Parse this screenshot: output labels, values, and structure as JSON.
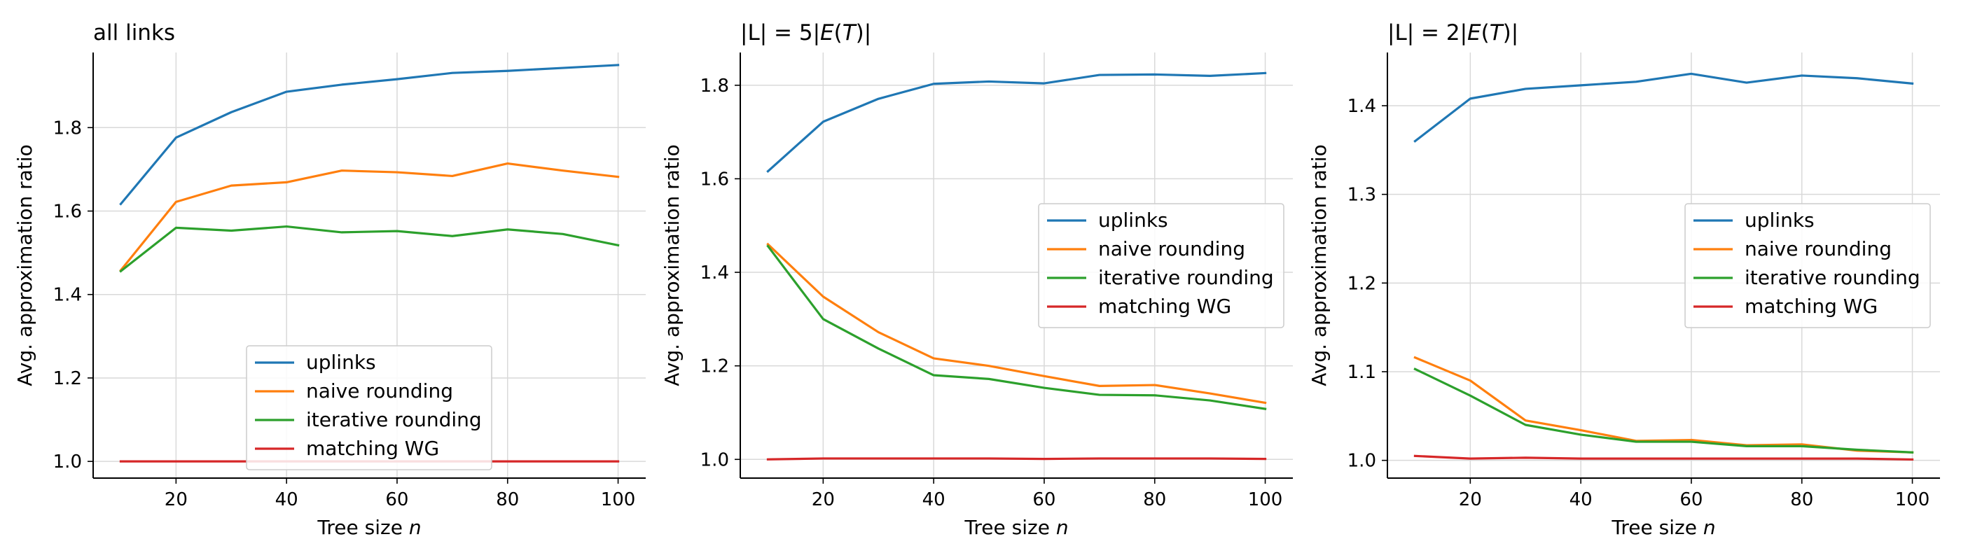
{
  "chart_data": [
    {
      "type": "line",
      "title": "all links",
      "xlabel": "Tree size",
      "xlabel_var": "n",
      "ylabel": "Avg. approximation ratio",
      "xlim": [
        5,
        105
      ],
      "ylim": [
        0.96,
        1.98
      ],
      "xticks": [
        20,
        40,
        60,
        80,
        100
      ],
      "yticks": [
        1.0,
        1.2,
        1.4,
        1.6,
        1.8
      ],
      "grid": true,
      "legend_position": "lower-center",
      "x": [
        10,
        20,
        30,
        40,
        50,
        60,
        70,
        80,
        90,
        100
      ],
      "series": [
        {
          "name": "uplinks",
          "color": "#1f77b4",
          "values": [
            1.617,
            1.776,
            1.837,
            1.886,
            1.903,
            1.916,
            1.931,
            1.936,
            1.943,
            1.95
          ]
        },
        {
          "name": "naive rounding",
          "color": "#ff7f0e",
          "values": [
            1.458,
            1.622,
            1.661,
            1.669,
            1.697,
            1.693,
            1.684,
            1.714,
            1.697,
            1.682
          ]
        },
        {
          "name": "iterative rounding",
          "color": "#2ca02c",
          "values": [
            1.456,
            1.56,
            1.553,
            1.563,
            1.549,
            1.552,
            1.54,
            1.556,
            1.545,
            1.518
          ]
        },
        {
          "name": "matching WG",
          "color": "#d62728",
          "values": [
            1.0,
            1.0,
            1.0,
            1.0,
            1.0,
            1.0,
            1.0,
            1.0,
            1.0,
            1.0
          ]
        }
      ]
    },
    {
      "type": "line",
      "title": "|L| = 5|E(T)|",
      "title_parts": [
        "|L| = 5|",
        "E",
        "(",
        "T",
        ")|"
      ],
      "xlabel": "Tree size",
      "xlabel_var": "n",
      "ylabel": "Avg. approximation ratio",
      "xlim": [
        5,
        105
      ],
      "ylim": [
        0.96,
        1.87
      ],
      "xticks": [
        20,
        40,
        60,
        80,
        100
      ],
      "yticks": [
        1.0,
        1.2,
        1.4,
        1.6,
        1.8
      ],
      "grid": true,
      "legend_position": "center-right",
      "x": [
        10,
        20,
        30,
        40,
        50,
        60,
        70,
        80,
        90,
        100
      ],
      "series": [
        {
          "name": "uplinks",
          "color": "#1f77b4",
          "values": [
            1.616,
            1.722,
            1.771,
            1.803,
            1.808,
            1.804,
            1.822,
            1.823,
            1.82,
            1.826
          ]
        },
        {
          "name": "naive rounding",
          "color": "#ff7f0e",
          "values": [
            1.46,
            1.348,
            1.272,
            1.216,
            1.2,
            1.178,
            1.157,
            1.159,
            1.141,
            1.121
          ]
        },
        {
          "name": "iterative rounding",
          "color": "#2ca02c",
          "values": [
            1.456,
            1.3,
            1.237,
            1.18,
            1.172,
            1.153,
            1.138,
            1.137,
            1.126,
            1.108
          ]
        },
        {
          "name": "matching WG",
          "color": "#d62728",
          "values": [
            1.0,
            1.002,
            1.002,
            1.002,
            1.002,
            1.001,
            1.002,
            1.002,
            1.002,
            1.001
          ]
        }
      ]
    },
    {
      "type": "line",
      "title": "|L| = 2|E(T)|",
      "title_parts": [
        "|L| = 2|",
        "E",
        "(",
        "T",
        ")|"
      ],
      "xlabel": "Tree size",
      "xlabel_var": "n",
      "ylabel": "Avg. approximation ratio",
      "xlim": [
        5,
        105
      ],
      "ylim": [
        0.98,
        1.46
      ],
      "xticks": [
        20,
        40,
        60,
        80,
        100
      ],
      "yticks": [
        1.0,
        1.1,
        1.2,
        1.3,
        1.4
      ],
      "grid": true,
      "legend_position": "center-right",
      "x": [
        10,
        20,
        30,
        40,
        50,
        60,
        70,
        80,
        90,
        100
      ],
      "series": [
        {
          "name": "uplinks",
          "color": "#1f77b4",
          "values": [
            1.36,
            1.408,
            1.419,
            1.423,
            1.427,
            1.436,
            1.426,
            1.434,
            1.431,
            1.425
          ]
        },
        {
          "name": "naive rounding",
          "color": "#ff7f0e",
          "values": [
            1.116,
            1.09,
            1.045,
            1.034,
            1.022,
            1.023,
            1.017,
            1.018,
            1.011,
            1.009
          ]
        },
        {
          "name": "iterative rounding",
          "color": "#2ca02c",
          "values": [
            1.103,
            1.073,
            1.04,
            1.029,
            1.021,
            1.021,
            1.016,
            1.016,
            1.012,
            1.009
          ]
        },
        {
          "name": "matching WG",
          "color": "#d62728",
          "values": [
            1.005,
            1.002,
            1.003,
            1.002,
            1.002,
            1.002,
            1.002,
            1.002,
            1.002,
            1.001
          ]
        }
      ]
    }
  ]
}
